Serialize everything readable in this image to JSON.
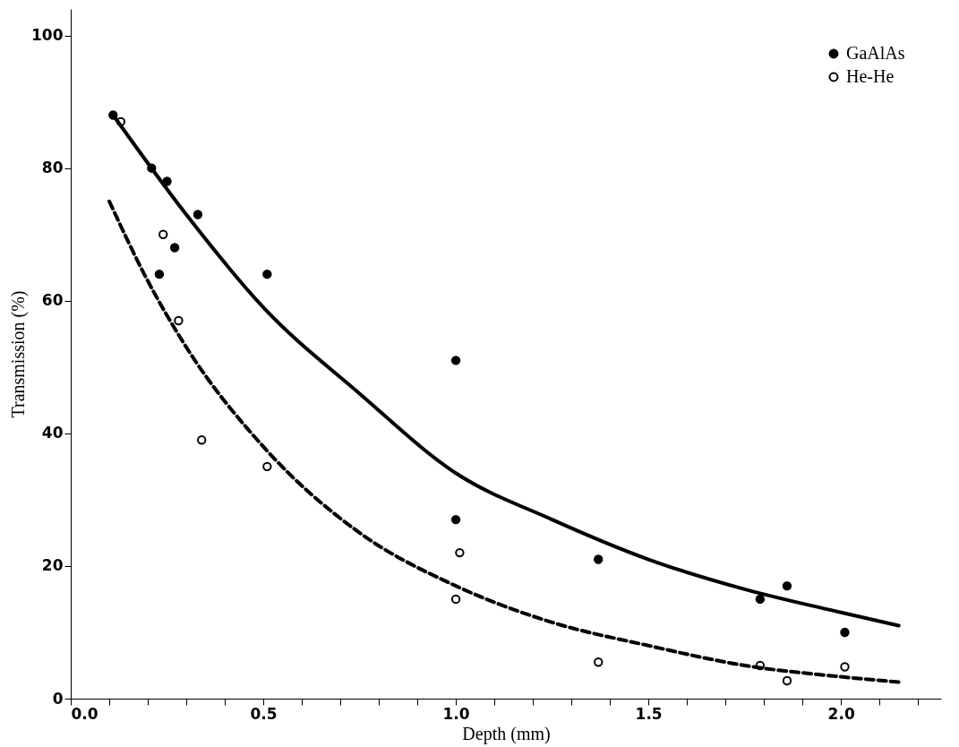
{
  "chart_data": {
    "type": "scatter",
    "xlabel": "Depth (mm)",
    "ylabel": "Transmission (%)",
    "xlim": [
      0,
      2.26
    ],
    "ylim": [
      0,
      104
    ],
    "xticks": [
      {
        "value": 0,
        "label": "0.0"
      },
      {
        "value": 0.1,
        "label": null
      },
      {
        "value": 0.2,
        "label": null
      },
      {
        "value": 0.3,
        "label": null
      },
      {
        "value": 0.4,
        "label": null
      },
      {
        "value": 0.5,
        "label": "0.5"
      },
      {
        "value": 0.6,
        "label": null
      },
      {
        "value": 0.7,
        "label": null
      },
      {
        "value": 0.8,
        "label": null
      },
      {
        "value": 0.9,
        "label": null
      },
      {
        "value": 1,
        "label": "1.0"
      },
      {
        "value": 1.1,
        "label": null
      },
      {
        "value": 1.2,
        "label": null
      },
      {
        "value": 1.3,
        "label": null
      },
      {
        "value": 1.4,
        "label": null
      },
      {
        "value": 1.5,
        "label": "1.5"
      },
      {
        "value": 1.6,
        "label": null
      },
      {
        "value": 1.7,
        "label": null
      },
      {
        "value": 1.8,
        "label": null
      },
      {
        "value": 1.9,
        "label": null
      },
      {
        "value": 2,
        "label": "2.0"
      },
      {
        "value": 2.1,
        "label": null
      },
      {
        "value": 2.2,
        "label": null
      }
    ],
    "yticks": [
      0,
      20,
      40,
      60,
      80,
      100
    ],
    "grid": false,
    "legend": "top right",
    "marker": "circle",
    "series": [
      {
        "name": "GaAlAs",
        "color": "#000000",
        "x": [
          0.11,
          0.21,
          0.25,
          0.23,
          0.27,
          0.33,
          0.51,
          1.0,
          1.0,
          1.37,
          1.79,
          1.86,
          2.01
        ],
        "values": [
          88,
          80,
          78,
          64,
          68,
          73,
          64,
          51,
          27,
          21,
          15,
          17,
          10
        ]
      },
      {
        "name": "He-He",
        "color": "#000000",
        "x": [
          0.13,
          0.24,
          0.28,
          0.34,
          0.51,
          1.01,
          1.0,
          1.37,
          1.79,
          1.86,
          2.01
        ],
        "values": [
          87,
          70,
          57,
          39,
          35,
          22,
          15,
          5.5,
          5,
          2.7,
          4.8
        ]
      },
      {
        "type": "line",
        "marker": "none",
        "line_style": "solid",
        "color": "#000000",
        "x": [
          0.11,
          0.3,
          0.5,
          0.75,
          1.0,
          1.25,
          1.5,
          1.75,
          2.0,
          2.15
        ],
        "values": [
          88,
          73,
          59,
          46,
          34,
          27,
          21,
          16.5,
          13,
          11
        ]
      },
      {
        "type": "line",
        "marker": "none",
        "line_style": "dashed",
        "color": "#000000",
        "x": [
          0.1,
          0.2,
          0.3,
          0.5,
          0.75,
          1.0,
          1.25,
          1.5,
          1.75,
          2.0,
          2.15
        ],
        "values": [
          75,
          63,
          53,
          38,
          25,
          17,
          11.5,
          8,
          5,
          3.3,
          2.5
        ]
      }
    ]
  }
}
